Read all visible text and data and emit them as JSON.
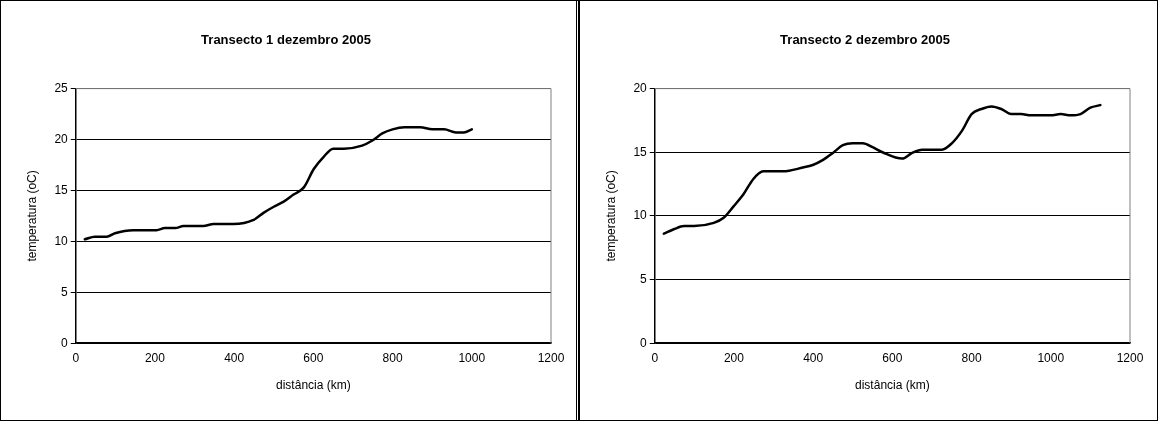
{
  "chart_data": [
    {
      "type": "line",
      "title": "Transecto 1 dezembro 2005",
      "xlabel": "distância (km)",
      "ylabel": "temperatura (oC)",
      "xlim": [
        0,
        1200
      ],
      "xticks": [
        0,
        200,
        400,
        600,
        800,
        1000,
        1200
      ],
      "ylim": [
        0,
        25
      ],
      "yticks": [
        0,
        5,
        10,
        15,
        20,
        25
      ],
      "grid": "y",
      "legend": false,
      "marker": "none",
      "line_style": "solid",
      "series": [
        {
          "color": "#000000",
          "x": [
            23,
            48,
            78,
            99,
            145,
            204,
            225,
            251,
            272,
            322,
            348,
            398,
            449,
            474,
            500,
            525,
            550,
            576,
            601,
            626,
            650,
            677,
            723,
            749,
            774,
            800,
            830,
            870,
            900,
            930,
            960,
            980,
            1000
          ],
          "values": [
            10.2,
            10.45,
            10.45,
            10.8,
            11.1,
            11.1,
            11.3,
            11.3,
            11.5,
            11.5,
            11.7,
            11.7,
            12.1,
            12.8,
            13.4,
            13.9,
            14.6,
            15.3,
            17.1,
            18.3,
            19.1,
            19.1,
            19.4,
            19.9,
            20.6,
            21.0,
            21.2,
            21.2,
            21.0,
            21.0,
            20.7,
            20.7,
            21.0
          ]
        }
      ]
    },
    {
      "type": "line",
      "title": "Transecto 2 dezembro 2005",
      "xlabel": "distância (km)",
      "ylabel": "temperatura (oC)",
      "xlim": [
        0,
        1200
      ],
      "xticks": [
        0,
        200,
        400,
        600,
        800,
        1000,
        1200
      ],
      "ylim": [
        0,
        20
      ],
      "yticks": [
        0,
        5,
        10,
        15,
        20
      ],
      "grid": "y",
      "legend": false,
      "marker": "none",
      "line_style": "solid",
      "series": [
        {
          "color": "#000000",
          "x": [
            23,
            48,
            74,
            99,
            149,
            174,
            199,
            224,
            249,
            274,
            324,
            374,
            399,
            425,
            450,
            475,
            500,
            525,
            550,
            575,
            625,
            650,
            675,
            725,
            750,
            776,
            800,
            825,
            850,
            875,
            900,
            925,
            950,
            1000,
            1025,
            1050,
            1075,
            1100,
            1125
          ],
          "values": [
            8.6,
            8.95,
            9.2,
            9.2,
            9.45,
            9.85,
            10.75,
            11.7,
            12.9,
            13.5,
            13.5,
            13.8,
            14.0,
            14.4,
            14.95,
            15.55,
            15.7,
            15.7,
            15.4,
            15.0,
            14.5,
            14.95,
            15.2,
            15.2,
            15.7,
            16.7,
            18.0,
            18.4,
            18.6,
            18.4,
            18.0,
            18.0,
            17.9,
            17.9,
            18.0,
            17.9,
            18.0,
            18.5,
            18.7
          ]
        }
      ]
    }
  ]
}
